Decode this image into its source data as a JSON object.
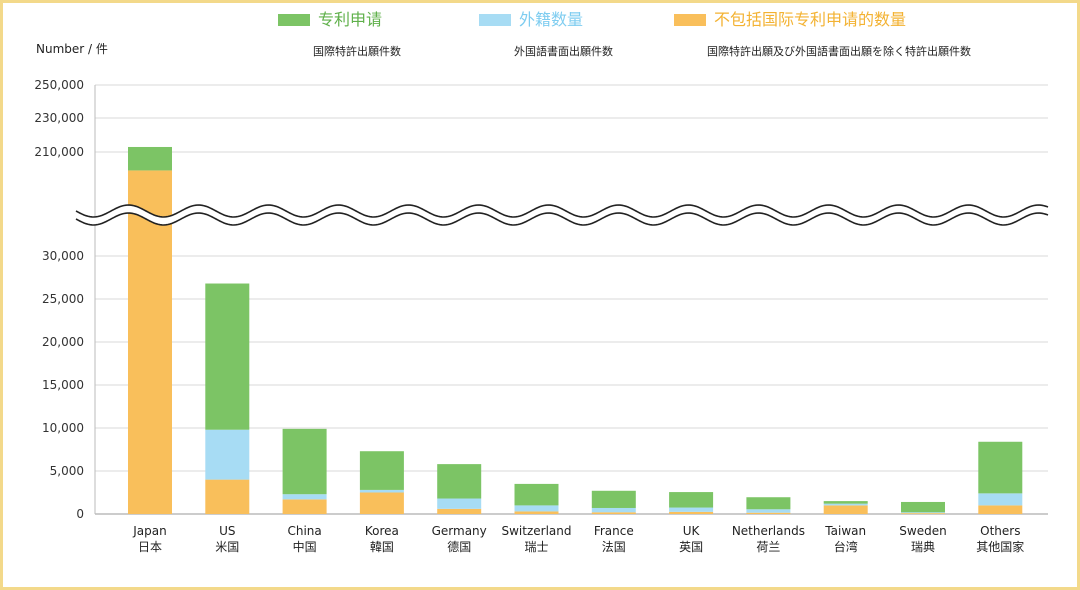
{
  "chart_data": {
    "type": "bar",
    "stacked": true,
    "ylabel": "Number / 件",
    "broken_axis": true,
    "yticks_lower": [
      "0",
      "5,000",
      "10,000",
      "15,000",
      "20,000",
      "25,000",
      "30,000"
    ],
    "yticks_upper": [
      "210,000",
      "230,000",
      "250,000"
    ],
    "categories": [
      {
        "en": "Japan",
        "zh": "日本"
      },
      {
        "en": "US",
        "zh": "米国"
      },
      {
        "en": "China",
        "zh": "中国"
      },
      {
        "en": "Korea",
        "zh": "韓国"
      },
      {
        "en": "Germany",
        "zh": "德国"
      },
      {
        "en": "Switzerland",
        "zh": "瑞士"
      },
      {
        "en": "France",
        "zh": "法国"
      },
      {
        "en": "UK",
        "zh": "英国"
      },
      {
        "en": "Netherlands",
        "zh": "荷兰"
      },
      {
        "en": "Taiwan",
        "zh": "台湾"
      },
      {
        "en": "Sweden",
        "zh": "瑞典"
      },
      {
        "en": "Others",
        "zh": "其他国家"
      }
    ],
    "series": [
      {
        "name": "不包括国际专利申请的数量",
        "name_jp": "国際特許出願及び外国語書面出願を除く特許出願件数",
        "color": "#f9bf5b",
        "values": [
          199000,
          4000,
          1700,
          2500,
          600,
          300,
          200,
          250,
          150,
          1000,
          100,
          1000
        ]
      },
      {
        "name": "外籍数量",
        "name_jp": "外国語書面出願件数",
        "color": "#a7dcf4",
        "values": [
          0,
          5800,
          600,
          300,
          1200,
          700,
          500,
          500,
          400,
          200,
          100,
          1400
        ]
      },
      {
        "name": "专利申请",
        "name_jp": "国際特許出願件数",
        "color": "#7cc465",
        "values": [
          14000,
          17000,
          7600,
          4500,
          4000,
          2500,
          2000,
          1800,
          1400,
          300,
          1200,
          6000
        ]
      }
    ],
    "grid": true,
    "legend_position": "top"
  }
}
